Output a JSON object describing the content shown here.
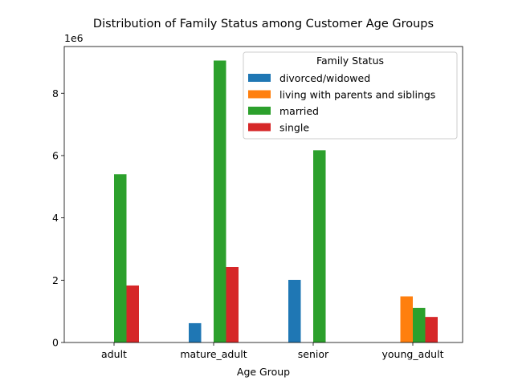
{
  "chart_data": {
    "type": "bar",
    "title": "Distribution of Family Status among Customer Age Groups",
    "xlabel": "Age Group",
    "ylabel": "",
    "y_offset_label": "1e6",
    "y_scale": 1000000,
    "ylim": [
      0,
      9500000
    ],
    "yticks": [
      0,
      2000000,
      4000000,
      6000000,
      8000000
    ],
    "ytick_labels": [
      "0",
      "2",
      "4",
      "6",
      "8"
    ],
    "grid": false,
    "legend_placement": "top-right",
    "legend_title": "Family Status",
    "categories": [
      "adult",
      "mature_adult",
      "senior",
      "young_adult"
    ],
    "series": [
      {
        "name": "divorced/widowed",
        "color": "#1f77b4",
        "values": [
          0,
          620000,
          2010000,
          0
        ]
      },
      {
        "name": "living with parents and siblings",
        "color": "#ff7f0e",
        "values": [
          0,
          0,
          0,
          1480000
        ]
      },
      {
        "name": "married",
        "color": "#2ca02c",
        "values": [
          5400000,
          9050000,
          6170000,
          1110000
        ]
      },
      {
        "name": "single",
        "color": "#d62728",
        "values": [
          1830000,
          2420000,
          0,
          820000
        ]
      }
    ]
  }
}
